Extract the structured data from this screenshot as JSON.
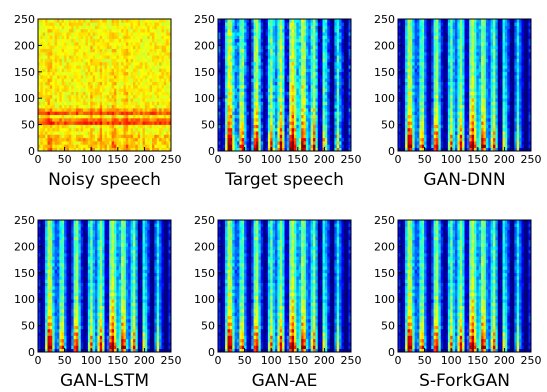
{
  "figure": {
    "panels": [
      {
        "caption": "Noisy speech",
        "style": "noisy"
      },
      {
        "caption": "Target speech",
        "style": "target"
      },
      {
        "caption": "GAN-DNN",
        "style": "smooth"
      },
      {
        "caption": "GAN-LSTM",
        "style": "smooth"
      },
      {
        "caption": "GAN-AE",
        "style": "smooth"
      },
      {
        "caption": "S-ForkGAN",
        "style": "smooth"
      }
    ]
  },
  "chart_data": {
    "type": "heatmap",
    "layout": "2x3 grid of spectrograms",
    "colormap": "jet",
    "xlim": [
      0,
      250
    ],
    "ylim": [
      0,
      250
    ],
    "x_ticks": [
      0,
      50,
      100,
      150,
      200,
      250
    ],
    "y_ticks": [
      0,
      50,
      100,
      150,
      200,
      250
    ],
    "grid": false,
    "series": [
      {
        "name": "Noisy speech"
      },
      {
        "name": "Target speech"
      },
      {
        "name": "GAN-DNN"
      },
      {
        "name": "GAN-LSTM"
      },
      {
        "name": "GAN-AE"
      },
      {
        "name": "S-ForkGAN"
      }
    ]
  }
}
